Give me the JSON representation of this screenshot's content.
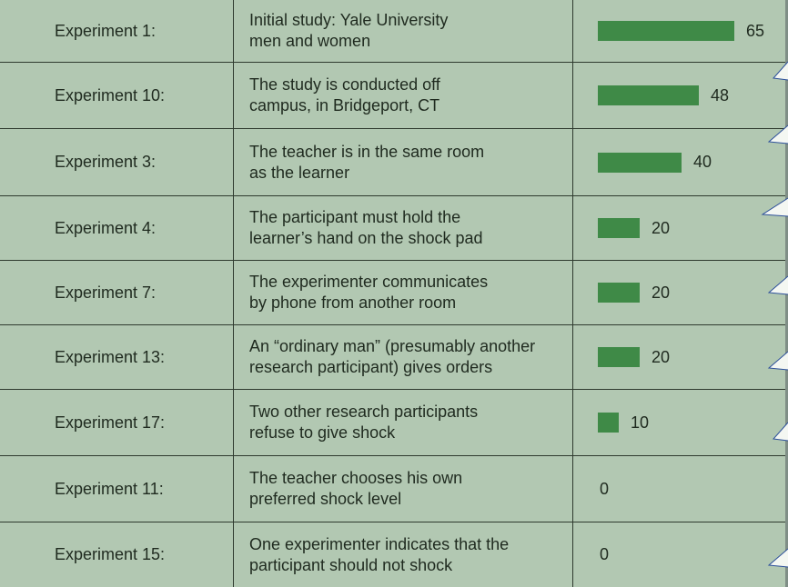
{
  "chart_data": {
    "type": "bar",
    "orientation": "horizontal",
    "title": "",
    "xlabel": "",
    "ylabel": "",
    "xlim": [
      0,
      65
    ],
    "grid": false,
    "bar_color": "#3f8a47",
    "rows": [
      {
        "experiment": "Experiment 1:",
        "description": "Initial study: Yale University\nmen and women",
        "value": 65
      },
      {
        "experiment": "Experiment 10:",
        "description": "The study is conducted off\ncampus, in Bridgeport, CT",
        "value": 48
      },
      {
        "experiment": "Experiment 3:",
        "description": "The teacher is in the same room\nas the learner",
        "value": 40
      },
      {
        "experiment": "Experiment 4:",
        "description": "The participant must hold the\nlearner’s hand on the shock pad",
        "value": 20
      },
      {
        "experiment": "Experiment 7:",
        "description": "The experimenter communicates\nby phone from another room",
        "value": 20
      },
      {
        "experiment": "Experiment 13:",
        "description": "An “ordinary man” (presumably another\nresearch participant) gives orders",
        "value": 20
      },
      {
        "experiment": "Experiment 17:",
        "description": "Two other research participants\nrefuse to give shock",
        "value": 10
      },
      {
        "experiment": "Experiment 11:",
        "description": "The teacher chooses his own\npreferred shock level",
        "value": 0
      },
      {
        "experiment": "Experiment 15:",
        "description": "One experimenter indicates that the\nparticipant should not shock",
        "value": 0
      }
    ]
  }
}
